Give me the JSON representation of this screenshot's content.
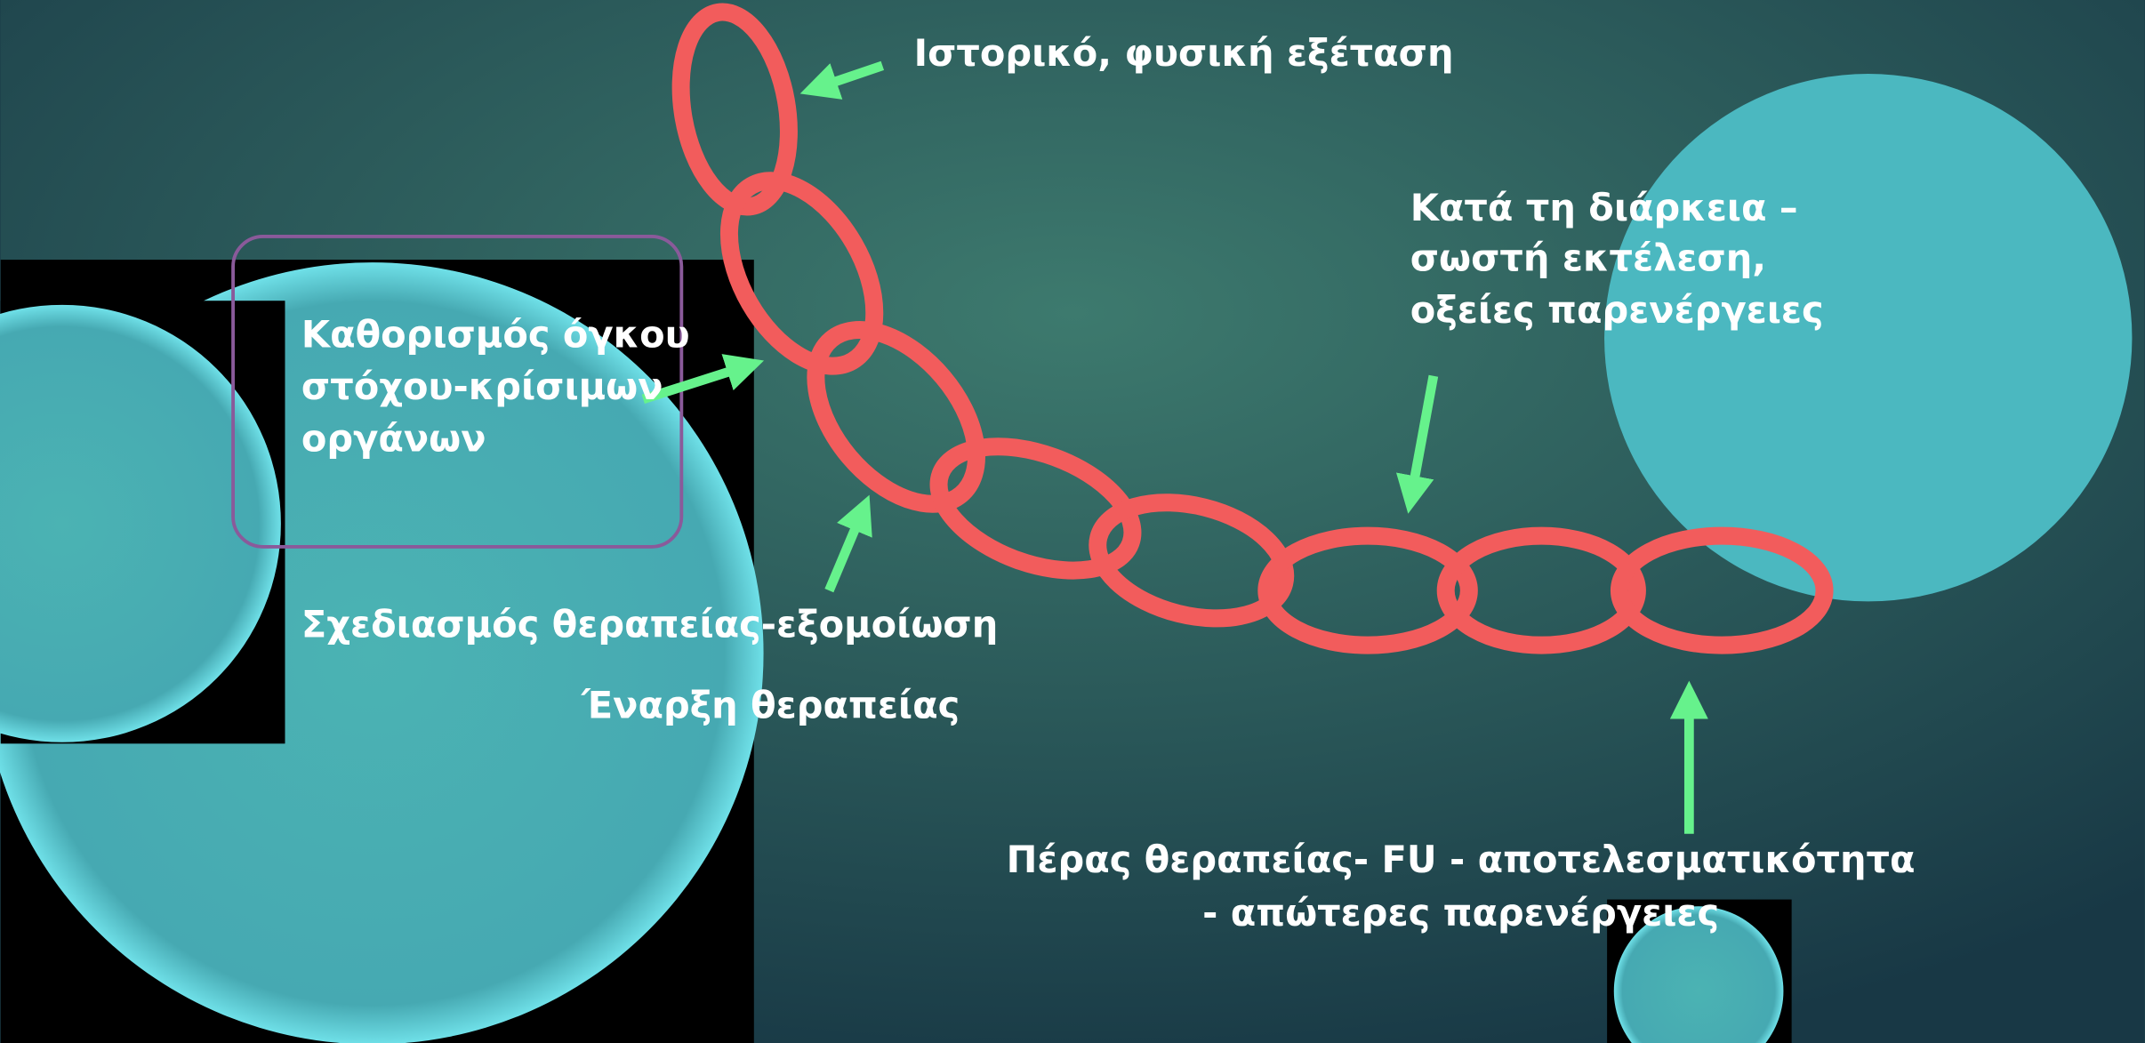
{
  "labels": [
    {
      "lines": [
        "Ιστορικό, φυσική εξέταση"
      ]
    },
    {
      "lines": [
        "Καθορισμός όγκου",
        "στόχου-κρίσιμων",
        "οργάνων"
      ]
    },
    {
      "lines": [
        "Σχεδιασμός θεραπείας-εξομοίωση"
      ]
    },
    {
      "lines": [
        "Έναρξη θεραπείας"
      ]
    },
    {
      "lines": [
        "Κατά τη διάρκεια –",
        "σωστή εκτέλεση,",
        "οξείες παρενέργειες"
      ]
    },
    {
      "lines": [
        "Πέρας θεραπείας- FU - αποτελεσματικότητα",
        "- απώτερες παρενέργειες"
      ]
    }
  ]
}
